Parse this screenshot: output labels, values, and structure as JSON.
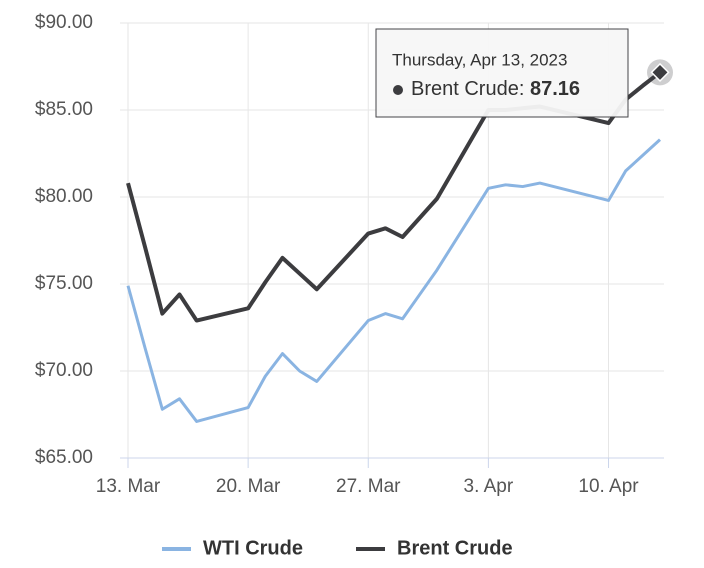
{
  "chart_data": {
    "type": "line",
    "x": [
      "2023-03-13",
      "2023-03-14",
      "2023-03-15",
      "2023-03-16",
      "2023-03-17",
      "2023-03-20",
      "2023-03-21",
      "2023-03-22",
      "2023-03-23",
      "2023-03-24",
      "2023-03-27",
      "2023-03-28",
      "2023-03-29",
      "2023-03-30",
      "2023-03-31",
      "2023-04-03",
      "2023-04-04",
      "2023-04-05",
      "2023-04-06",
      "2023-04-10",
      "2023-04-11",
      "2023-04-12",
      "2023-04-13"
    ],
    "series": [
      {
        "name": "WTI Crude",
        "color": "#8ab4e2",
        "values": [
          74.9,
          71.3,
          67.8,
          68.4,
          67.1,
          67.9,
          69.7,
          71.0,
          70.0,
          69.4,
          72.9,
          73.3,
          73.0,
          74.4,
          75.8,
          80.5,
          80.7,
          80.6,
          80.8,
          79.8,
          81.5,
          82.4,
          83.3
        ]
      },
      {
        "name": "Brent Crude",
        "color": "#3c3c3f",
        "values": [
          80.8,
          77.1,
          73.3,
          74.4,
          72.9,
          73.6,
          75.1,
          76.5,
          75.6,
          74.7,
          77.9,
          78.2,
          77.7,
          78.8,
          79.9,
          85.0,
          85.0,
          85.1,
          85.2,
          84.25,
          85.6,
          86.4,
          87.16
        ]
      }
    ],
    "xlim": [
      "2023-03-13",
      "2023-04-13"
    ],
    "xticks": [
      {
        "value": "2023-03-13",
        "label": "13. Mar"
      },
      {
        "value": "2023-03-20",
        "label": "20. Mar"
      },
      {
        "value": "2023-03-27",
        "label": "27. Mar"
      },
      {
        "value": "2023-04-03",
        "label": "3. Apr"
      },
      {
        "value": "2023-04-10",
        "label": "10. Apr"
      }
    ],
    "ylim": [
      65,
      90
    ],
    "yticks": [
      {
        "value": 65,
        "label": "$65.00"
      },
      {
        "value": 70,
        "label": "$70.00"
      },
      {
        "value": 75,
        "label": "$75.00"
      },
      {
        "value": 80,
        "label": "$80.00"
      },
      {
        "value": 85,
        "label": "$85.00"
      },
      {
        "value": 90,
        "label": "$90.00"
      }
    ],
    "grid": true,
    "legend": "bottom",
    "tooltip": {
      "date": "Thursday, Apr 13, 2023",
      "label": "Brent Crude:"
    }
  }
}
